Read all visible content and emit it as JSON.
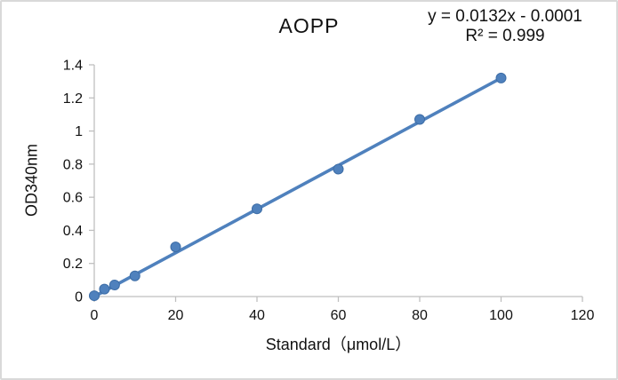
{
  "chart_data": {
    "type": "scatter",
    "title": "AOPP",
    "annotation": {
      "equation": "y = 0.0132x - 0.0001",
      "r_squared": "R² = 0.999"
    },
    "xlabel": "Standard（μmol/L）",
    "ylabel": "OD340nm",
    "xlim": [
      0,
      120
    ],
    "ylim": [
      0,
      1.4
    ],
    "x_ticks": [
      0,
      20,
      40,
      60,
      80,
      100,
      120
    ],
    "y_ticks": [
      0,
      0.2,
      0.4,
      0.6,
      0.8,
      1,
      1.2,
      1.4
    ],
    "grid": false,
    "legend": false,
    "x": [
      0,
      2.5,
      5,
      10,
      20,
      40,
      60,
      80,
      100
    ],
    "y": [
      0.005,
      0.045,
      0.07,
      0.125,
      0.3,
      0.53,
      0.77,
      1.07,
      1.32
    ],
    "trendline": {
      "slope": 0.0132,
      "intercept": -0.0001,
      "x_start": 0,
      "x_end": 100
    },
    "colors": {
      "marker": "#4f81bd",
      "marker_edge": "#3d6da6",
      "trendline": "#4f81bd",
      "axis": "#bfbfbf",
      "text": "#111111"
    }
  }
}
